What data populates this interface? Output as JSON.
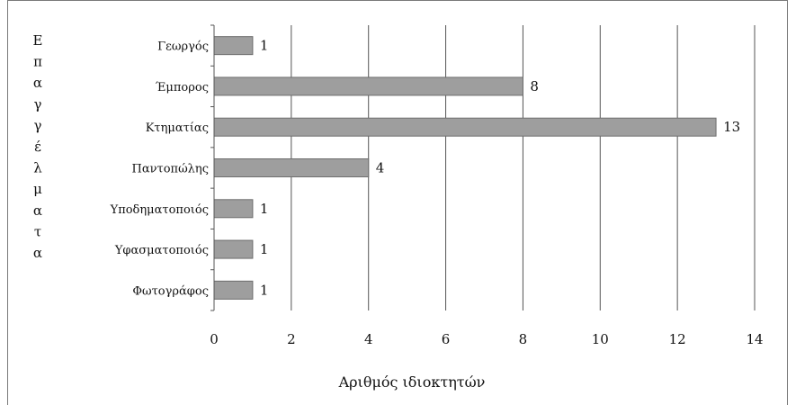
{
  "chart_data": {
    "type": "bar",
    "orientation": "horizontal",
    "categories": [
      "Γεωργός",
      "Έμπορος",
      "Κτηματίας",
      "Παντοπώλης",
      "Υποδηματοποιός",
      "Υφασματοποιός",
      "Φωτογράφος"
    ],
    "values": [
      1,
      8,
      13,
      4,
      1,
      1,
      1
    ],
    "xlabel": "Αριθμός ιδιοκτητών",
    "ylabel": "Επαγγέλματα",
    "xlim": [
      0,
      14
    ],
    "xticks": [
      0,
      2,
      4,
      6,
      8,
      10,
      12,
      14
    ],
    "grid": "vertical",
    "bar_color": "#9e9e9e",
    "legend": "none"
  }
}
